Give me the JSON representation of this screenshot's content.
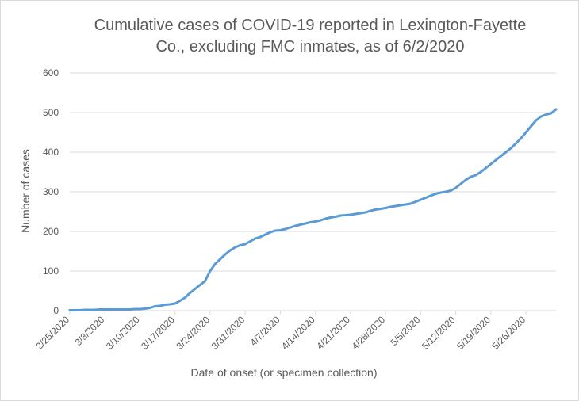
{
  "chart_data": {
    "type": "line",
    "title_lines": [
      "Cumulative cases of COVID-19 reported in Lexington-Fayette",
      "Co., excluding FMC inmates, as of 6/2/2020"
    ],
    "xlabel": "Date of onset (or specimen collection)",
    "ylabel": "Number of cases",
    "ylim": [
      0,
      600
    ],
    "yticks": [
      0,
      100,
      200,
      300,
      400,
      500,
      600
    ],
    "xlim": [
      "2020-02-25",
      "2020-06-01"
    ],
    "xticks": [
      {
        "date": "2020-02-25",
        "label": "2/25/2020"
      },
      {
        "date": "2020-03-03",
        "label": "3/3/2020"
      },
      {
        "date": "2020-03-10",
        "label": "3/10/2020"
      },
      {
        "date": "2020-03-17",
        "label": "3/17/2020"
      },
      {
        "date": "2020-03-24",
        "label": "3/24/2020"
      },
      {
        "date": "2020-03-31",
        "label": "3/31/2020"
      },
      {
        "date": "2020-04-07",
        "label": "4/7/2020"
      },
      {
        "date": "2020-04-14",
        "label": "4/14/2020"
      },
      {
        "date": "2020-04-21",
        "label": "4/21/2020"
      },
      {
        "date": "2020-04-28",
        "label": "4/28/2020"
      },
      {
        "date": "2020-05-05",
        "label": "5/5/2020"
      },
      {
        "date": "2020-05-12",
        "label": "5/12/2020"
      },
      {
        "date": "2020-05-19",
        "label": "5/19/2020"
      },
      {
        "date": "2020-05-26",
        "label": "5/26/2020"
      }
    ],
    "grid": true,
    "series": [
      {
        "color": "#5b9bd5",
        "x": [
          "2020-02-25",
          "2020-02-26",
          "2020-02-27",
          "2020-02-28",
          "2020-02-29",
          "2020-03-01",
          "2020-03-02",
          "2020-03-03",
          "2020-03-04",
          "2020-03-05",
          "2020-03-06",
          "2020-03-07",
          "2020-03-08",
          "2020-03-09",
          "2020-03-10",
          "2020-03-11",
          "2020-03-12",
          "2020-03-13",
          "2020-03-14",
          "2020-03-15",
          "2020-03-16",
          "2020-03-17",
          "2020-03-18",
          "2020-03-19",
          "2020-03-20",
          "2020-03-21",
          "2020-03-22",
          "2020-03-23",
          "2020-03-24",
          "2020-03-25",
          "2020-03-26",
          "2020-03-27",
          "2020-03-28",
          "2020-03-29",
          "2020-03-30",
          "2020-03-31",
          "2020-04-01",
          "2020-04-02",
          "2020-04-03",
          "2020-04-04",
          "2020-04-05",
          "2020-04-06",
          "2020-04-07",
          "2020-04-08",
          "2020-04-09",
          "2020-04-10",
          "2020-04-11",
          "2020-04-12",
          "2020-04-13",
          "2020-04-14",
          "2020-04-15",
          "2020-04-16",
          "2020-04-17",
          "2020-04-18",
          "2020-04-19",
          "2020-04-20",
          "2020-04-21",
          "2020-04-22",
          "2020-04-23",
          "2020-04-24",
          "2020-04-25",
          "2020-04-26",
          "2020-04-27",
          "2020-04-28",
          "2020-04-29",
          "2020-04-30",
          "2020-05-01",
          "2020-05-02",
          "2020-05-03",
          "2020-05-04",
          "2020-05-05",
          "2020-05-06",
          "2020-05-07",
          "2020-05-08",
          "2020-05-09",
          "2020-05-10",
          "2020-05-11",
          "2020-05-12",
          "2020-05-13",
          "2020-05-14",
          "2020-05-15",
          "2020-05-16",
          "2020-05-17",
          "2020-05-18",
          "2020-05-19",
          "2020-05-20",
          "2020-05-21",
          "2020-05-22",
          "2020-05-23",
          "2020-05-24",
          "2020-05-25",
          "2020-05-26",
          "2020-05-27",
          "2020-05-28",
          "2020-05-29",
          "2020-05-30",
          "2020-05-31",
          "2020-06-01"
        ],
        "values": [
          1,
          1,
          1,
          2,
          2,
          2,
          3,
          3,
          3,
          3,
          3,
          3,
          3,
          4,
          4,
          5,
          7,
          11,
          12,
          15,
          16,
          18,
          25,
          33,
          45,
          55,
          65,
          75,
          100,
          118,
          130,
          142,
          152,
          160,
          165,
          168,
          175,
          182,
          186,
          192,
          198,
          202,
          203,
          206,
          210,
          214,
          217,
          220,
          223,
          225,
          228,
          232,
          235,
          237,
          240,
          241,
          242,
          244,
          246,
          248,
          252,
          255,
          257,
          259,
          262,
          264,
          266,
          268,
          270,
          275,
          280,
          285,
          290,
          295,
          298,
          300,
          303,
          310,
          320,
          330,
          338,
          342,
          350,
          360,
          370,
          380,
          390,
          400,
          410,
          422,
          435,
          450,
          465,
          480,
          490,
          495,
          498,
          508
        ]
      }
    ]
  }
}
